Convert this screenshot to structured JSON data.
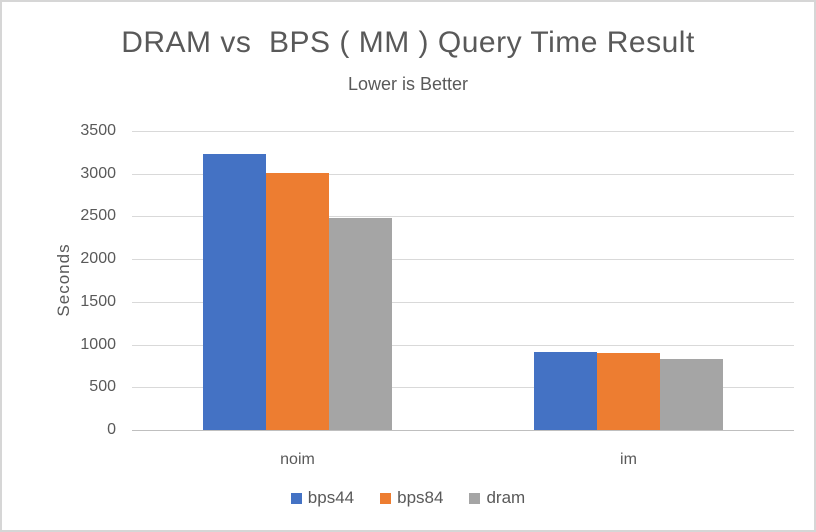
{
  "window": {
    "background": "#ffffff",
    "border_color": "#d6d6d6"
  },
  "chart_data": {
    "type": "bar",
    "title": "DRAM vs  BPS ( MM ) Query Time Result",
    "subtitle": "Lower is Better",
    "xlabel": "",
    "ylabel": "Seconds",
    "categories": [
      "noim",
      "im"
    ],
    "series": [
      {
        "name": "bps44",
        "color": "#4472C4",
        "values": [
          3230,
          910
        ]
      },
      {
        "name": "bps84",
        "color": "#ED7D31",
        "values": [
          3010,
          900
        ]
      },
      {
        "name": "dram",
        "color": "#A5A5A5",
        "values": [
          2480,
          830
        ]
      }
    ],
    "ylim": [
      0,
      3500
    ],
    "yticks": [
      0,
      500,
      1000,
      1500,
      2000,
      2500,
      3000,
      3500
    ],
    "grid": true,
    "legend_position": "bottom",
    "text_color": "#595959",
    "gridline_color": "#d9d9d9",
    "axisline_color": "#bfbfbf"
  }
}
